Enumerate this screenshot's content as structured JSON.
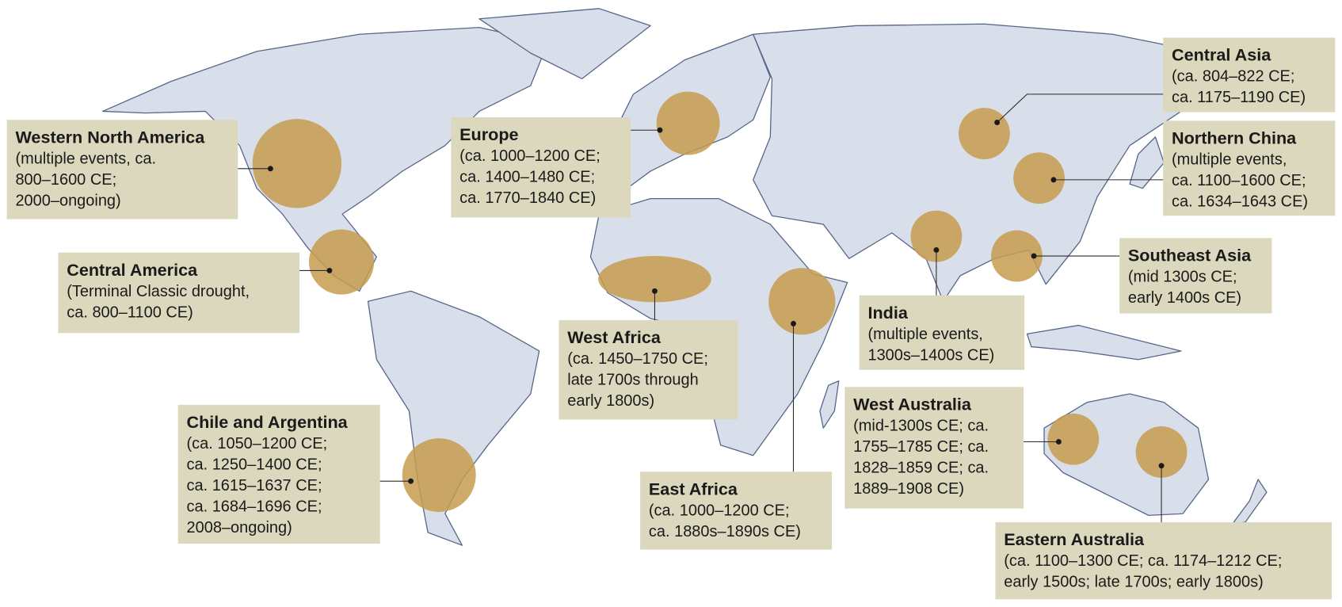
{
  "regions": [
    {
      "name": "Western North America",
      "lines": [
        "(multiple events, ca.",
        "800–1600 CE;",
        "2000–ongoing)"
      ]
    },
    {
      "name": "Central America",
      "lines": [
        "(Terminal Classic drought,",
        "ca. 800–1100 CE)"
      ]
    },
    {
      "name": "Chile and Argentina",
      "lines": [
        "(ca. 1050–1200 CE;",
        "ca. 1250–1400 CE;",
        "ca. 1615–1637 CE;",
        "ca. 1684–1696 CE;",
        "2008–ongoing)"
      ]
    },
    {
      "name": "Europe",
      "lines": [
        "(ca. 1000–1200 CE;",
        "ca. 1400–1480 CE;",
        "ca. 1770–1840 CE)"
      ]
    },
    {
      "name": "West Africa",
      "lines": [
        "(ca. 1450–1750 CE;",
        "late 1700s through",
        "early 1800s)"
      ]
    },
    {
      "name": "East Africa",
      "lines": [
        "(ca. 1000–1200 CE;",
        "ca. 1880s–1890s CE)"
      ]
    },
    {
      "name": "India",
      "lines": [
        "(multiple events,",
        "1300s–1400s CE)"
      ]
    },
    {
      "name": "Central Asia",
      "lines": [
        "(ca. 804–822 CE;",
        "ca. 1175–1190 CE)"
      ]
    },
    {
      "name": "Northern China",
      "lines": [
        "(multiple events,",
        "ca. 1100–1600 CE;",
        "ca. 1634–1643 CE)"
      ]
    },
    {
      "name": "Southeast Asia",
      "lines": [
        "(mid 1300s CE;",
        "early 1400s CE)"
      ]
    },
    {
      "name": "West Australia",
      "lines": [
        "(mid-1300s CE; ca.",
        "1755–1785 CE; ca.",
        "1828–1859 CE; ca.",
        "1889–1908 CE)"
      ]
    },
    {
      "name": "Eastern Australia",
      "lines": [
        "(ca. 1100–1300 CE; ca. 1174–1212 CE;",
        "early 1500s; late 1700s; early 1800s)"
      ]
    }
  ]
}
